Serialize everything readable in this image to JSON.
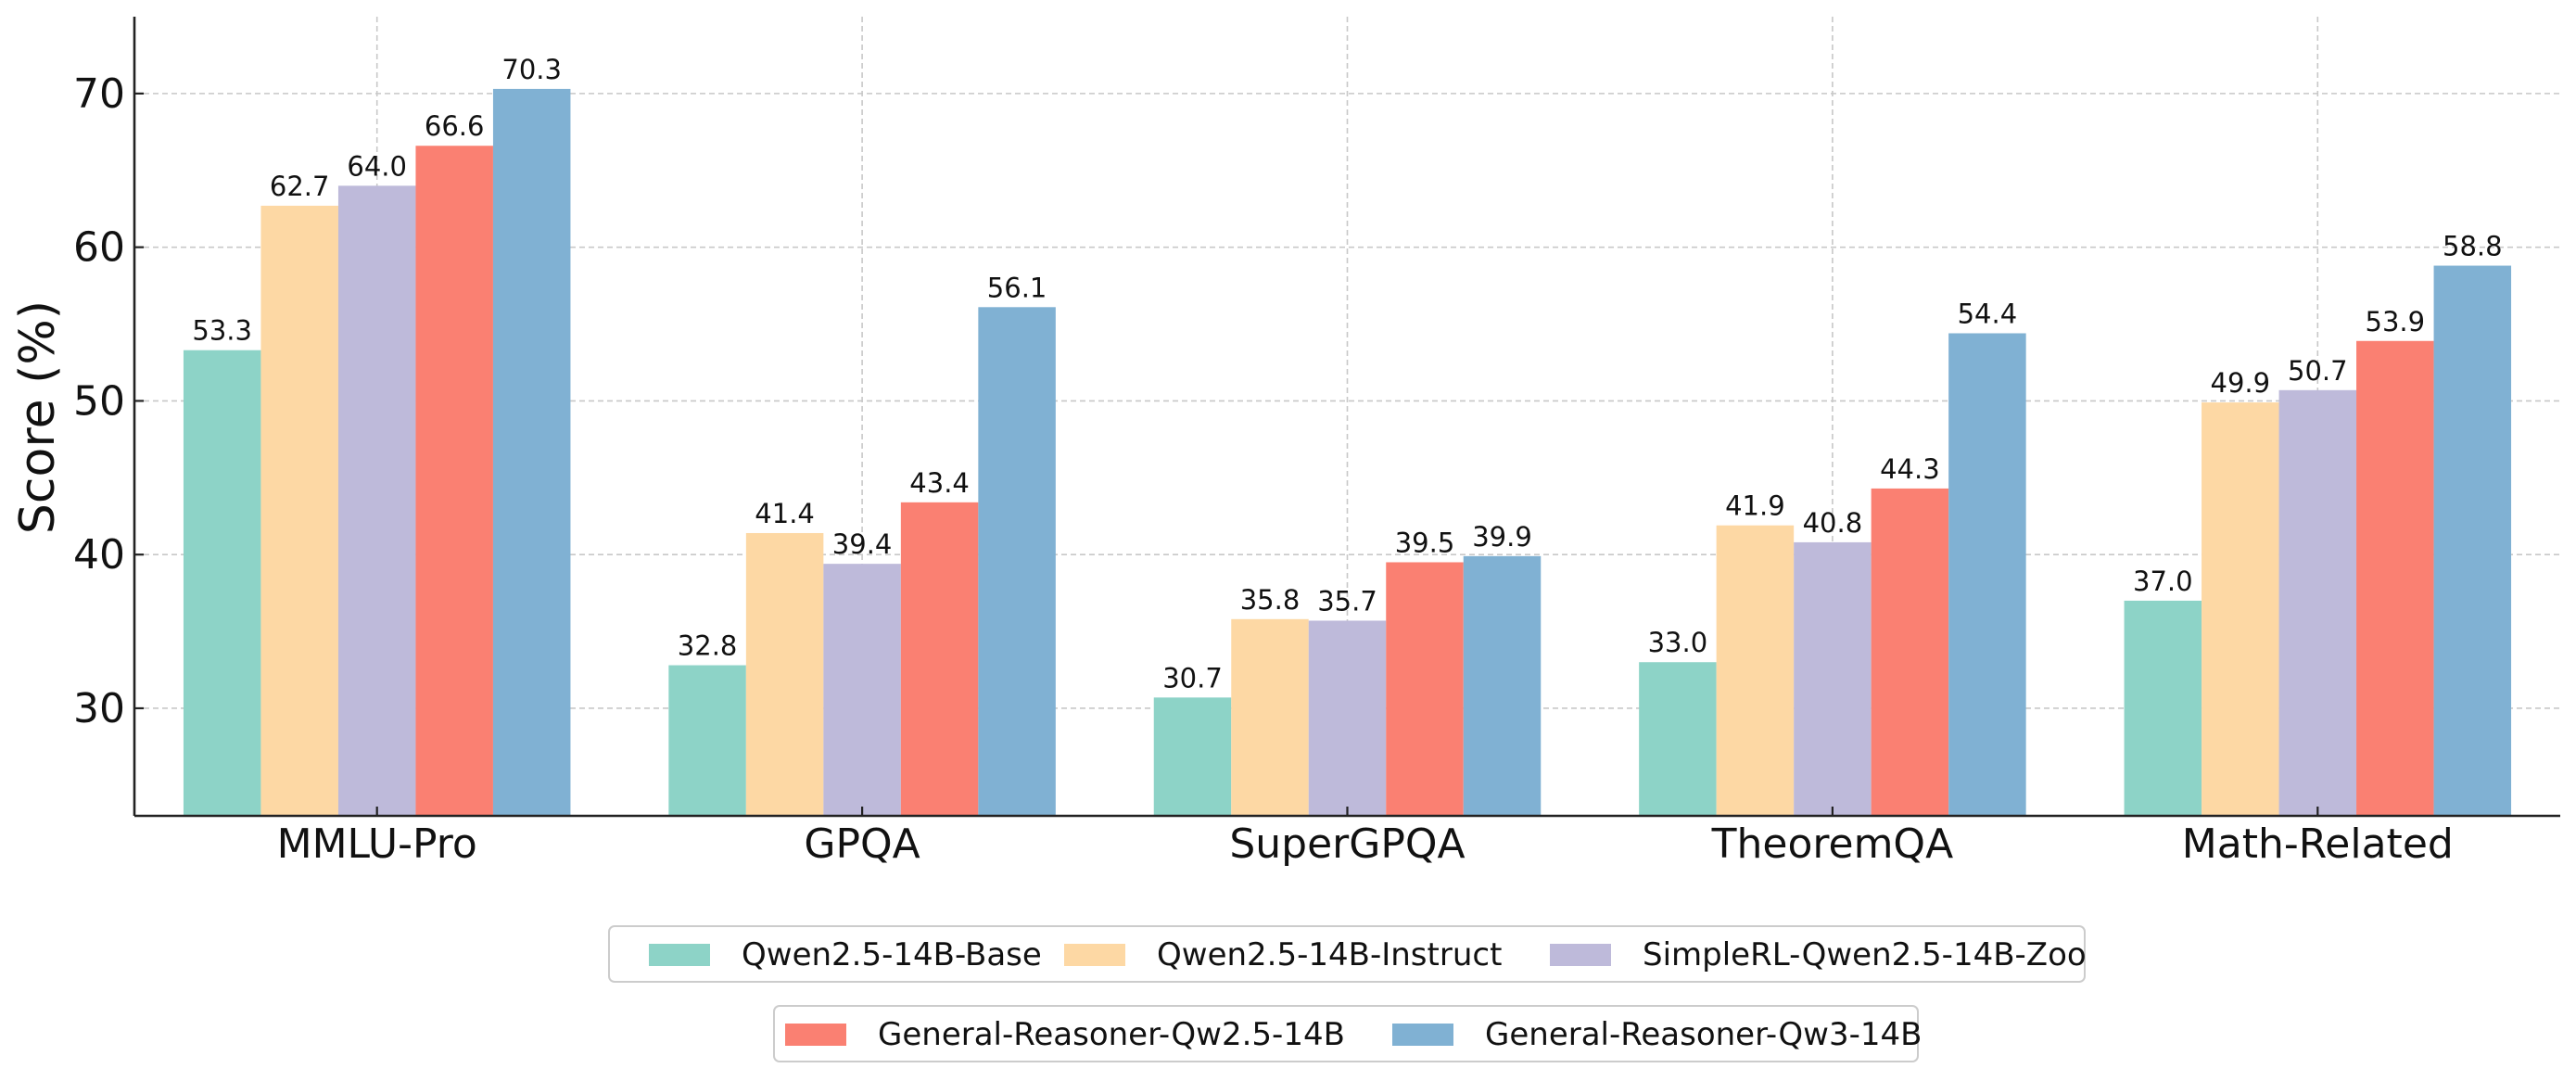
{
  "chart_data": {
    "type": "bar",
    "title": "",
    "xlabel": "",
    "ylabel": "Score (%)",
    "ylim": [
      23,
      75
    ],
    "yticks": [
      30,
      40,
      50,
      60,
      70
    ],
    "grid": true,
    "legend_position": "bottom-center",
    "categories": [
      "MMLU-Pro",
      "GPQA",
      "SuperGPQA",
      "TheoremQA",
      "Math-Related"
    ],
    "series": [
      {
        "name": "Qwen2.5-14B-Base",
        "color": "#8dd3c7",
        "values": [
          53.3,
          32.8,
          30.7,
          33.0,
          37.0
        ]
      },
      {
        "name": "Qwen2.5-14B-Instruct",
        "color": "#fdd8a4",
        "values": [
          62.7,
          41.4,
          35.8,
          41.9,
          49.9
        ]
      },
      {
        "name": "SimpleRL-Qwen2.5-14B-Zoo",
        "color": "#bebada",
        "values": [
          64.0,
          39.4,
          35.7,
          40.8,
          50.7
        ]
      },
      {
        "name": "General-Reasoner-Qw2.5-14B",
        "color": "#fa8072",
        "values": [
          66.6,
          43.4,
          39.5,
          44.3,
          53.9
        ]
      },
      {
        "name": "General-Reasoner-Qw3-14B",
        "color": "#80b1d3",
        "values": [
          70.3,
          56.1,
          39.9,
          54.4,
          58.8
        ]
      }
    ],
    "legend_rows": [
      [
        "Qwen2.5-14B-Base",
        "Qwen2.5-14B-Instruct",
        "SimpleRL-Qwen2.5-14B-Zoo"
      ],
      [
        "General-Reasoner-Qw2.5-14B",
        "General-Reasoner-Qw3-14B"
      ]
    ]
  }
}
